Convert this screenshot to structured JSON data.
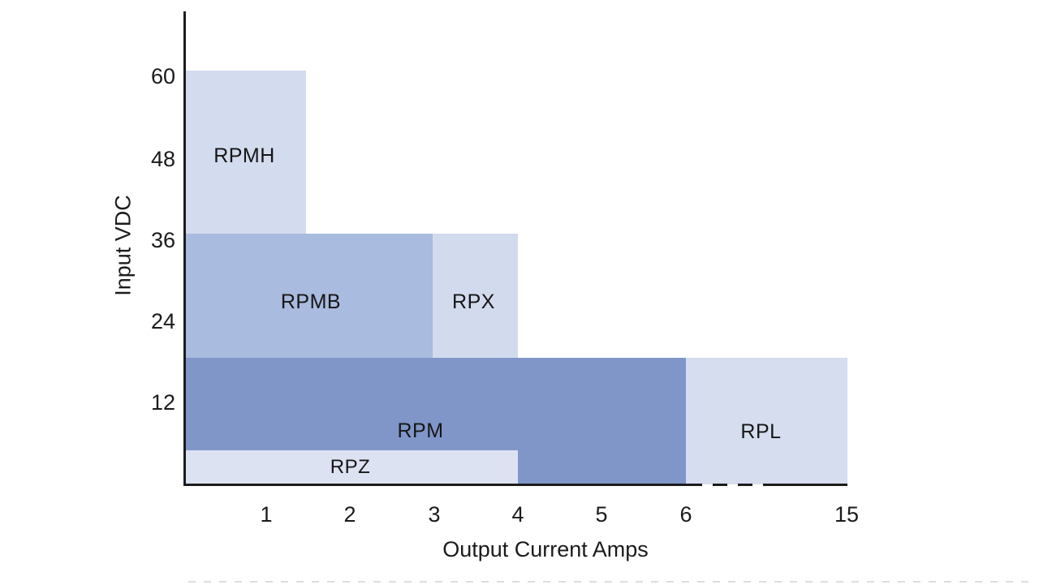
{
  "chart_data": {
    "type": "area",
    "title": "",
    "xlabel": "Output Current Amps",
    "ylabel": "Input VDC",
    "x_ticks": [
      "1",
      "2",
      "3",
      "4",
      "5",
      "6",
      "15"
    ],
    "y_ticks": [
      "60",
      "48",
      "36",
      "24",
      "12"
    ],
    "x_axis_range": [
      0,
      15
    ],
    "y_axis_range": [
      0,
      66
    ],
    "grid": "off",
    "axis_break": "x-axis drawn dashed between 6 and ~11 amps (compressed scale from 6 to 15)",
    "axis_color": "#1c1c1c",
    "background": "#ffffff",
    "regions": [
      {
        "label": "RPMH",
        "amps": [
          0,
          1.5
        ],
        "vdc": [
          36,
          61
        ],
        "color": "#d3dbee"
      },
      {
        "label": "RPMB",
        "amps": [
          0,
          3
        ],
        "vdc": [
          19,
          36
        ],
        "color": "#a9bbde"
      },
      {
        "label": "RPX",
        "amps": [
          3,
          4
        ],
        "vdc": [
          19,
          36
        ],
        "color": "#d2daee"
      },
      {
        "label": "RPM",
        "amps": [
          0,
          6
        ],
        "vdc": [
          0,
          19
        ],
        "color": "#8096c9"
      },
      {
        "label": "RPZ",
        "amps": [
          0,
          4
        ],
        "vdc": [
          0,
          5
        ],
        "color": "#dce2f2"
      },
      {
        "label": "RPL",
        "amps": [
          6,
          15
        ],
        "vdc": [
          0,
          19
        ],
        "color": "#d5ddef"
      }
    ]
  }
}
